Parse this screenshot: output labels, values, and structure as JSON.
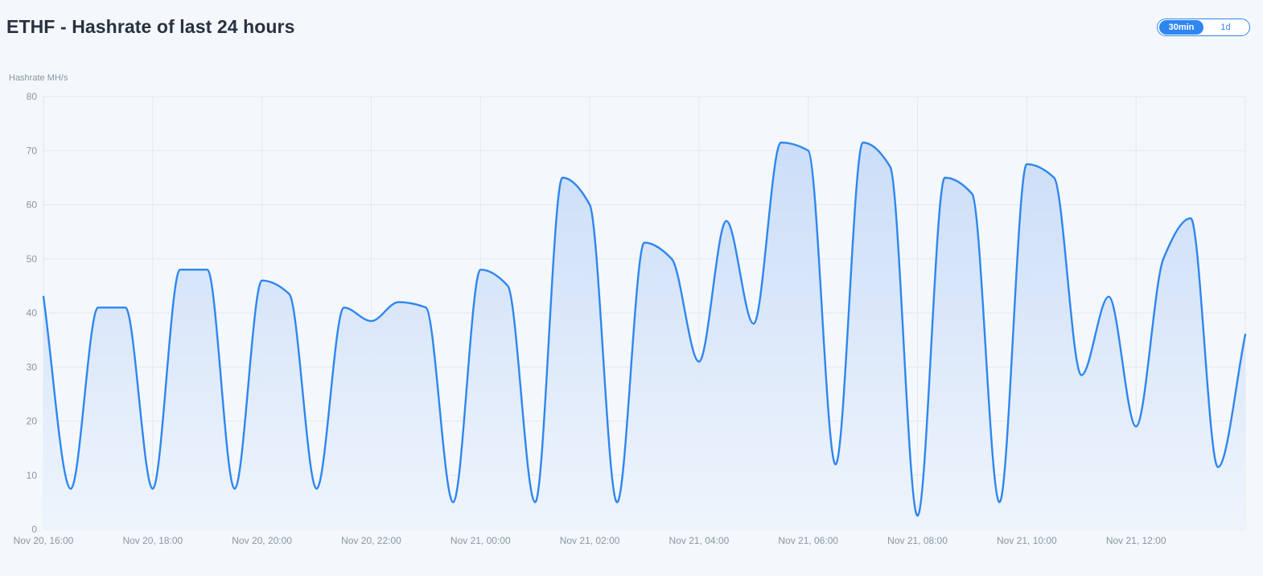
{
  "header": {
    "title": "ETHF - Hashrate of last 24 hours"
  },
  "range_toggle": {
    "options": [
      "30min",
      "1d"
    ],
    "selected": "30min"
  },
  "colors": {
    "line": "#2e86f0",
    "area_top": "#c9dcf7",
    "area_bottom": "#eef4fc",
    "grid": "#e3e8ee",
    "axis_text": "#8a95a3",
    "toggle_accent": "#2e86f0"
  },
  "chart_data": {
    "type": "area",
    "ylabel": "Hashrate MH/s",
    "ylim": [
      0,
      80
    ],
    "y_ticks": [
      "0",
      "10",
      "20",
      "30",
      "40",
      "50",
      "60",
      "70",
      "80"
    ],
    "x_tick_labels": [
      "Nov 20, 16:00",
      "Nov 20, 18:00",
      "Nov 20, 20:00",
      "Nov 20, 22:00",
      "Nov 21, 00:00",
      "Nov 21, 02:00",
      "Nov 21, 04:00",
      "Nov 21, 06:00",
      "Nov 21, 08:00",
      "Nov 21, 10:00",
      "Nov 21, 12:00"
    ],
    "grid": true,
    "series": [
      {
        "values": [
          43,
          7.5,
          41,
          41,
          7.5,
          48,
          48,
          7.5,
          46,
          43.5,
          7.5,
          41,
          38.5,
          42,
          41,
          5,
          48,
          45,
          5,
          65,
          60,
          5,
          53,
          50,
          31,
          57,
          38,
          71.5,
          70,
          12,
          71.5,
          67,
          2.5,
          65,
          62,
          5,
          67.5,
          65,
          28.5,
          43,
          19,
          50,
          57.5,
          11.5,
          36
        ]
      }
    ]
  }
}
